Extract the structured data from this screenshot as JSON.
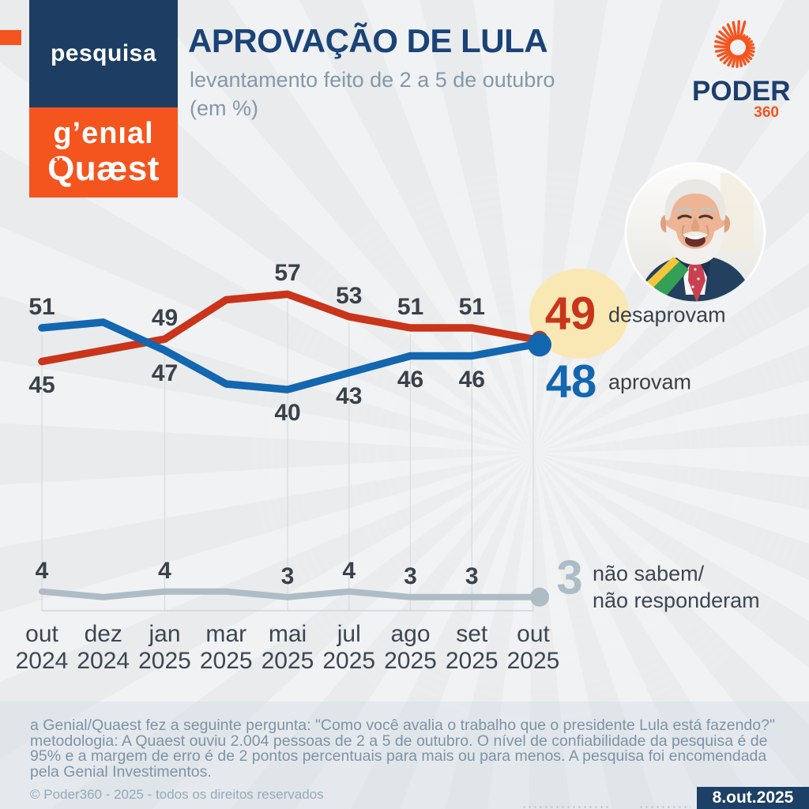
{
  "header": {
    "kicker": "pesquisa",
    "brand_genial": "g’enıal",
    "brand_quaest": "Quæst",
    "title": "APROVAÇÃO DE LULA",
    "subtitle": "levantamento feito de 2 a 5 de outubro",
    "unit_note": "(em %)",
    "logo_name": "PODER",
    "logo_sub": "360"
  },
  "icons": {
    "poder_sunburst": "orange radial ray swirl",
    "lula_photo": "circular portrait of Lula smiling, suit and presidential sash",
    "quaest_q_dots": "pixel dots inside Q"
  },
  "chart_data": {
    "type": "line",
    "title": "APROVAÇÃO DE LULA",
    "subtitle": "levantamento feito de 2 a 5 de outubro",
    "unit": "%",
    "grid": "vertical lines at labeled survey waves only",
    "legend_position": "end-of-line labels at right",
    "x": [
      "out 2024",
      "dez 2024",
      "jan 2025",
      "mar 2025",
      "mai 2025",
      "jul 2025",
      "ago 2025",
      "set 2025",
      "out 2025"
    ],
    "series": [
      {
        "name": "desaprovam",
        "color": "#c9341a",
        "values": [
          45,
          47,
          49,
          56,
          57,
          53,
          51,
          51,
          49
        ],
        "label_side": [
          "below",
          "",
          "above",
          "",
          "above",
          "above",
          "above",
          "above",
          ""
        ],
        "end_value": 49
      },
      {
        "name": "aprovam",
        "color": "#1366b0",
        "values": [
          51,
          52,
          47,
          41,
          40,
          43,
          46,
          46,
          48
        ],
        "label_side": [
          "above",
          "",
          "below",
          "",
          "below",
          "below",
          "below",
          "below",
          ""
        ],
        "end_value": 48
      },
      {
        "name": "não sabem/não responderam",
        "color": "#aebcc6",
        "values": [
          4,
          3,
          4,
          4,
          3,
          4,
          3,
          3,
          3
        ],
        "label_side": [
          "above",
          "",
          "above",
          "",
          "above",
          "above",
          "above",
          "above",
          ""
        ],
        "end_value": 3
      }
    ]
  },
  "highlights": {
    "disapprove": {
      "value": "49",
      "label": "desaprovam"
    },
    "approve": {
      "value": "48",
      "label": "aprovam"
    },
    "dontknow": {
      "value": "3",
      "label_lines": [
        "não sabem/",
        "não responderam"
      ]
    }
  },
  "footer": {
    "methodology_lines": [
      "a Genial/Quaest fez a seguinte pergunta: \"Como você avalia o trabalho que o presidente Lula está fazendo?\"",
      "metodologia: A Quaest ouviu 2.004 pessoas de 2 a 5 de outubro. O nível de confiabilidade da pesquisa é de",
      "95% e a margem de erro é de 2 pontos percentuais para mais ou para menos. A pesquisa foi encomendada",
      "pela Genial Investimentos."
    ],
    "copyright": "© Poder360 - 2025 - todos os direitos reservados",
    "date_badge": "8.out.2025"
  },
  "colors": {
    "accent_orange": "#f4551f",
    "navy_box": "#1d3e62",
    "title_blue": "#1a4377",
    "line_red": "#c9341a",
    "line_blue": "#1366b0",
    "line_gray": "#aebcc6",
    "highlight_yellow": "#fae8b4",
    "text_dark": "#3a4149",
    "text_muted": "#8398ab",
    "background": "#e9ebed"
  }
}
